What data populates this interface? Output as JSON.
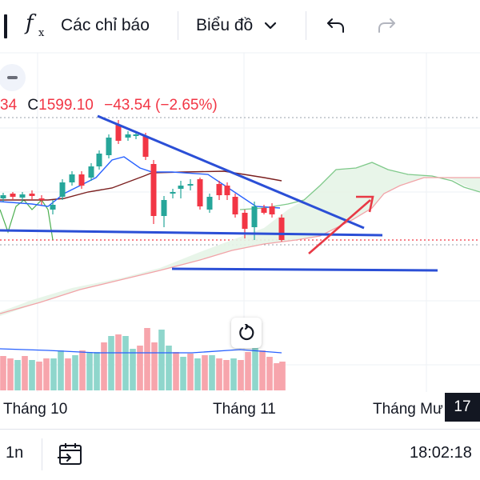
{
  "toolbar": {
    "indicators_label": "Các chỉ báo",
    "chart_type_label": "Biểu đồ",
    "fx_icon": "function-icon",
    "undo_icon": "undo-icon",
    "redo_icon": "redo-icon"
  },
  "legend": {
    "open_fragment": "34",
    "close_label": "C",
    "close_value": "1599.10",
    "change": "−43.54 (−2.65%)"
  },
  "time_axis": {
    "labels": [
      "Tháng 10",
      "Tháng 11",
      "Tháng Mư"
    ],
    "current_badge": "17"
  },
  "footer": {
    "interval": "1n",
    "clock": "18:02:18"
  },
  "colors": {
    "up": "#26a69a",
    "down": "#f23645",
    "up_volume": "#8fd6cc",
    "down_volume": "#f7a5ac",
    "drawing": "#2b4fd6",
    "arrow": "#f23645",
    "cloud": "#e3f3e4"
  }
}
